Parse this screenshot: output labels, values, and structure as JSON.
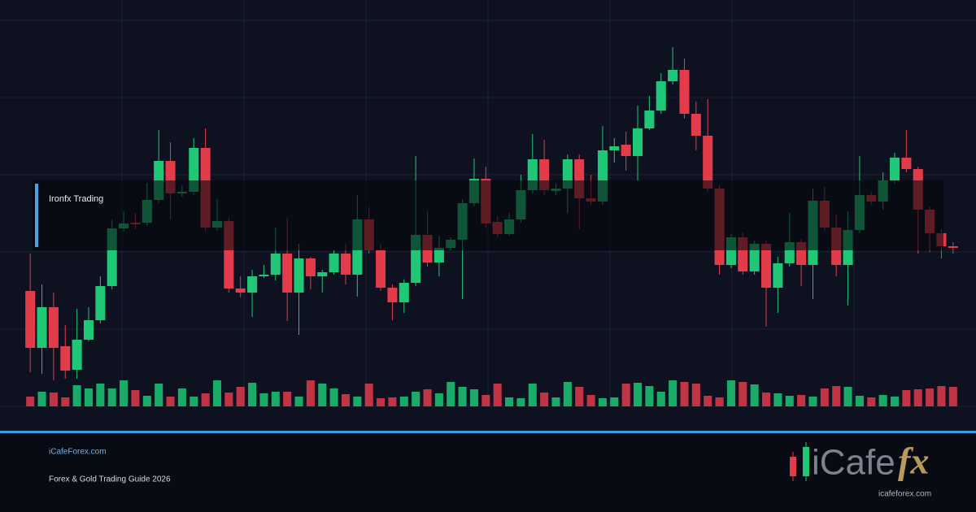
{
  "chart_data": {
    "type": "candlestick",
    "label": "Ironfx Trading",
    "open": [
      142,
      72,
      122,
      74,
      45,
      82,
      106,
      148,
      219,
      226,
      226,
      254,
      302,
      262,
      264,
      318,
      220,
      228,
      145,
      140,
      160,
      162,
      188,
      140,
      182,
      160,
      165,
      188,
      162,
      230,
      192,
      146,
      128,
      152,
      211,
      177,
      195,
      205,
      250,
      280,
      227,
      212,
      230,
      266,
      304,
      265,
      268,
      304,
      256,
      252,
      315,
      322,
      308,
      342,
      364,
      400,
      414,
      360,
      333,
      268,
      174,
      208,
      166,
      200,
      146,
      176,
      202,
      174,
      253,
      220,
      174,
      217,
      260,
      252,
      278,
      306,
      292,
      242,
      213,
      197
    ],
    "high": [
      188,
      150,
      140,
      100,
      120,
      122,
      160,
      230,
      240,
      238,
      275,
      340,
      325,
      272,
      330,
      342,
      255,
      232,
      160,
      168,
      174,
      220,
      232,
      200,
      184,
      168,
      192,
      200,
      260,
      245,
      200,
      150,
      156,
      308,
      240,
      210,
      208,
      255,
      305,
      295,
      234,
      238,
      285,
      335,
      328,
      274,
      310,
      310,
      285,
      345,
      330,
      338,
      370,
      382,
      410,
      442,
      428,
      375,
      378,
      272,
      212,
      214,
      204,
      204,
      184,
      238,
      206,
      268,
      270,
      236,
      240,
      308,
      264,
      288,
      312,
      340,
      295,
      246,
      218,
      202
    ],
    "low": [
      42,
      40,
      32,
      34,
      34,
      80,
      102,
      144,
      215,
      218,
      222,
      250,
      230,
      258,
      260,
      216,
      216,
      140,
      134,
      110,
      158,
      155,
      105,
      88,
      144,
      140,
      162,
      150,
      135,
      188,
      142,
      106,
      115,
      148,
      172,
      160,
      192,
      132,
      246,
      220,
      208,
      210,
      226,
      262,
      260,
      260,
      238,
      218,
      248,
      248,
      300,
      290,
      278,
      340,
      360,
      396,
      354,
      315,
      264,
      162,
      170,
      162,
      162,
      98,
      115,
      172,
      148,
      132,
      216,
      160,
      124,
      213,
      248,
      242,
      274,
      288,
      188,
      190,
      182,
      188
    ],
    "close": [
      72,
      122,
      72,
      44,
      82,
      106,
      148,
      219,
      225,
      224,
      254,
      302,
      262,
      264,
      318,
      220,
      228,
      145,
      140,
      160,
      162,
      188,
      140,
      182,
      160,
      165,
      188,
      162,
      230,
      192,
      146,
      128,
      152,
      211,
      177,
      195,
      205,
      250,
      280,
      225,
      212,
      230,
      266,
      304,
      266,
      268,
      304,
      256,
      252,
      315,
      320,
      308,
      342,
      364,
      400,
      414,
      360,
      333,
      268,
      174,
      208,
      166,
      200,
      146,
      176,
      202,
      174,
      253,
      220,
      174,
      217,
      260,
      252,
      278,
      306,
      292,
      242,
      213,
      197,
      195
    ],
    "volume": [
      12,
      18,
      17,
      11,
      26,
      22,
      28,
      22,
      32,
      20,
      13,
      28,
      12,
      22,
      12,
      16,
      32,
      17,
      24,
      29,
      16,
      18,
      18,
      12,
      32,
      28,
      22,
      15,
      12,
      28,
      10,
      11,
      12,
      18,
      21,
      16,
      30,
      24,
      21,
      14,
      28,
      11,
      10,
      28,
      17,
      11,
      30,
      24,
      14,
      10,
      11,
      28,
      29,
      25,
      18,
      32,
      30,
      28,
      13,
      11,
      32,
      30,
      27,
      17,
      16,
      13,
      14,
      12,
      22,
      25,
      24,
      13,
      11,
      14,
      12,
      20,
      21,
      22,
      25,
      24
    ],
    "up_color": "#1fc776",
    "down_color": "#e23b4a",
    "ylim": [
      0,
      475
    ],
    "vlim": [
      0,
      32
    ],
    "grid": true
  },
  "footer": {
    "site": "iCafeForex.com",
    "subtitle": "Forex & Gold Trading Guide 2026"
  },
  "logo": {
    "text": "iCafe",
    "accent": "fx",
    "url": "icafeforex.com"
  }
}
